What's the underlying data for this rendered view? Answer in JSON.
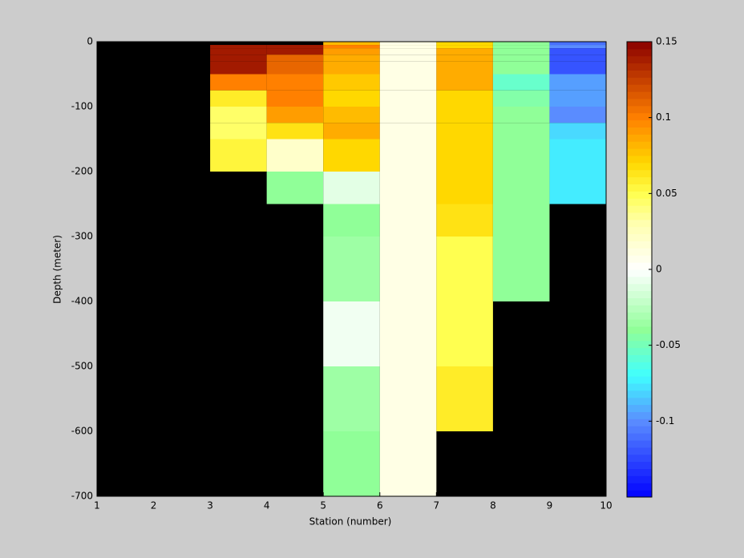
{
  "chart_data": {
    "type": "heatmap",
    "x_label": "Station (number)",
    "y_label": "Depth (meter)",
    "x": [
      1,
      2,
      3,
      4,
      5,
      6,
      7,
      8,
      9,
      10
    ],
    "y": [
      0,
      -5,
      -10,
      -20,
      -30,
      -50,
      -75,
      -100,
      -125,
      -150,
      -200,
      -250,
      -300,
      -350,
      -400,
      -500,
      -600,
      -700
    ],
    "z": [
      [
        null,
        null,
        null,
        null,
        0.08,
        0.01,
        0.07,
        -0.04,
        -0.11
      ],
      [
        null,
        null,
        0.14,
        0.14,
        0.1,
        0.01,
        0.07,
        -0.04,
        -0.1
      ],
      [
        null,
        null,
        0.14,
        0.14,
        0.09,
        0.01,
        0.085,
        -0.04,
        -0.12
      ],
      [
        null,
        null,
        0.14,
        0.11,
        0.085,
        0.01,
        0.085,
        -0.04,
        -0.12
      ],
      [
        null,
        null,
        0.14,
        0.11,
        0.085,
        0.01,
        0.085,
        -0.04,
        -0.12
      ],
      [
        null,
        null,
        0.1,
        0.1,
        0.075,
        0.01,
        0.085,
        -0.055,
        -0.095
      ],
      [
        null,
        null,
        0.06,
        0.1,
        0.07,
        0.01,
        0.07,
        -0.045,
        -0.095
      ],
      [
        null,
        null,
        0.045,
        0.09,
        0.08,
        0.01,
        0.07,
        -0.04,
        -0.1
      ],
      [
        null,
        null,
        0.045,
        0.065,
        0.085,
        0.01,
        0.07,
        -0.04,
        -0.08
      ],
      [
        null,
        null,
        0.055,
        0.02,
        0.07,
        0.01,
        0.07,
        -0.04,
        -0.075
      ],
      [
        null,
        null,
        null,
        -0.04,
        -0.01,
        0.01,
        0.07,
        -0.04,
        -0.075
      ],
      [
        null,
        null,
        null,
        null,
        -0.04,
        0.01,
        0.065,
        -0.04,
        null
      ],
      [
        null,
        null,
        null,
        null,
        -0.035,
        0.01,
        0.05,
        -0.04,
        null
      ],
      [
        null,
        null,
        null,
        null,
        -0.035,
        0.01,
        0.05,
        -0.04,
        null
      ],
      [
        null,
        null,
        null,
        null,
        -0.005,
        0.01,
        0.05,
        null,
        null
      ],
      [
        null,
        null,
        null,
        null,
        -0.035,
        0.01,
        0.06,
        null,
        null
      ],
      [
        null,
        null,
        null,
        null,
        -0.04,
        0.01,
        null,
        null,
        null
      ]
    ],
    "xlim": [
      1,
      10
    ],
    "ylim": [
      -700,
      0
    ],
    "xticks": [
      1,
      2,
      3,
      4,
      5,
      6,
      7,
      8,
      9,
      10
    ],
    "yticks": [
      0,
      -100,
      -200,
      -300,
      -400,
      -500,
      -600,
      -700
    ],
    "clim": [
      -0.15,
      0.15
    ],
    "colorbar_ticks": [
      -0.1,
      -0.05,
      0,
      0.05,
      0.1,
      0.15
    ],
    "colormap": [
      {
        "value": -0.15,
        "color": "#0000ff"
      },
      {
        "value": -0.1,
        "color": "#5a8cff"
      },
      {
        "value": -0.07,
        "color": "#40ffff"
      },
      {
        "value": -0.04,
        "color": "#90ff98"
      },
      {
        "value": 0,
        "color": "#ffffff"
      },
      {
        "value": 0.03,
        "color": "#ffffb0"
      },
      {
        "value": 0.05,
        "color": "#ffff50"
      },
      {
        "value": 0.07,
        "color": "#ffd800"
      },
      {
        "value": 0.1,
        "color": "#ff8000"
      },
      {
        "value": 0.15,
        "color": "#8b0000"
      }
    ],
    "background": "#000000"
  }
}
